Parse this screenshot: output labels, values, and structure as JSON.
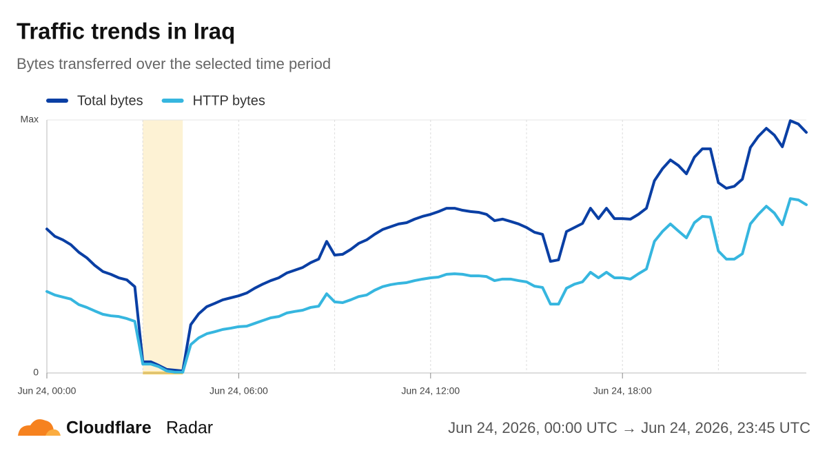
{
  "chart_data": {
    "type": "line",
    "title": "Traffic trends in Iraq",
    "subtitle": "Bytes transferred over the selected time period",
    "x": [
      0,
      0.25,
      0.5,
      0.75,
      1,
      1.25,
      1.5,
      1.75,
      2,
      2.25,
      2.5,
      2.75,
      3,
      3.25,
      3.5,
      3.75,
      4,
      4.25,
      4.5,
      4.75,
      5,
      5.25,
      5.5,
      5.75,
      6,
      6.25,
      6.5,
      6.75,
      7,
      7.25,
      7.5,
      7.75,
      8,
      8.25,
      8.5,
      8.75,
      9,
      9.25,
      9.5,
      9.75,
      10,
      10.25,
      10.5,
      10.75,
      11,
      11.25,
      11.5,
      11.75,
      12,
      12.25,
      12.5,
      12.75,
      13,
      13.25,
      13.5,
      13.75,
      14,
      14.25,
      14.5,
      14.75,
      15,
      15.25,
      15.5,
      15.75,
      16,
      16.25,
      16.5,
      16.75,
      17,
      17.25,
      17.5,
      17.75,
      18,
      18.25,
      18.5,
      18.75,
      19,
      19.25,
      19.5,
      19.75,
      20,
      20.25,
      20.5,
      20.75,
      21,
      21.25,
      21.5,
      21.75,
      22,
      22.25,
      22.5,
      22.75,
      23,
      23.25,
      23.5,
      23.75
    ],
    "series": [
      {
        "name": "Total bytes",
        "color": "#0a3fa4",
        "values": [
          56.9,
          54.0,
          52.6,
          50.7,
          47.7,
          45.5,
          42.5,
          40.1,
          39.0,
          37.6,
          36.8,
          34.1,
          4.4,
          4.4,
          3.0,
          1.4,
          1.1,
          0.8,
          19.1,
          23.4,
          26.2,
          27.5,
          28.9,
          29.7,
          30.5,
          31.6,
          33.5,
          35.1,
          36.5,
          37.6,
          39.5,
          40.6,
          41.7,
          43.6,
          45.0,
          52.0,
          46.6,
          46.9,
          48.8,
          51.2,
          52.6,
          54.8,
          56.7,
          57.8,
          58.9,
          59.4,
          60.8,
          61.9,
          62.7,
          63.8,
          65.1,
          65.1,
          64.3,
          63.8,
          63.5,
          62.7,
          60.2,
          60.8,
          59.9,
          58.9,
          57.5,
          55.6,
          54.8,
          44.1,
          44.7,
          55.9,
          57.5,
          59.1,
          65.1,
          61.0,
          65.1,
          61.0,
          61.0,
          60.8,
          62.7,
          65.1,
          76.0,
          80.7,
          84.2,
          82.0,
          78.7,
          85.3,
          88.6,
          88.6,
          75.2,
          73.0,
          73.8,
          76.6,
          89.1,
          93.5,
          96.7,
          94.0,
          89.4,
          99.7,
          98.4,
          95.1
        ]
      },
      {
        "name": "HTTP bytes",
        "color": "#36b6df",
        "values": [
          32.2,
          30.8,
          30.0,
          29.2,
          27.0,
          25.9,
          24.5,
          23.2,
          22.6,
          22.3,
          21.5,
          20.4,
          3.5,
          3.5,
          2.5,
          0.8,
          0.3,
          0.3,
          11.2,
          13.9,
          15.5,
          16.3,
          17.2,
          17.7,
          18.3,
          18.5,
          19.6,
          20.7,
          21.8,
          22.3,
          23.7,
          24.3,
          24.8,
          25.9,
          26.4,
          31.3,
          28.1,
          27.8,
          28.9,
          30.2,
          30.8,
          32.7,
          34.1,
          34.9,
          35.4,
          35.7,
          36.5,
          37.1,
          37.6,
          37.9,
          39.0,
          39.2,
          39.0,
          38.4,
          38.4,
          38.1,
          36.5,
          37.1,
          37.1,
          36.5,
          36.0,
          34.3,
          33.8,
          27.2,
          27.2,
          33.5,
          35.1,
          36.0,
          39.8,
          37.6,
          39.8,
          37.6,
          37.6,
          37.1,
          39.2,
          41.1,
          52.0,
          55.9,
          58.9,
          56.1,
          53.4,
          59.4,
          61.9,
          61.6,
          48.2,
          45.0,
          45.0,
          47.1,
          58.9,
          62.7,
          65.9,
          63.2,
          58.6,
          68.9,
          68.4,
          66.5
        ]
      }
    ],
    "xlim": [
      0,
      23.75
    ],
    "xticks": [
      {
        "value": 0,
        "label": "Jun 24, 00:00"
      },
      {
        "value": 6,
        "label": "Jun 24, 06:00"
      },
      {
        "value": 12,
        "label": "Jun 24, 12:00"
      },
      {
        "value": 18,
        "label": "Jun 24, 18:00"
      }
    ],
    "xgrid": [
      3,
      9,
      15,
      21
    ],
    "ylim": [
      0,
      100
    ],
    "yticks": [
      0,
      {
        "value": 100,
        "label": "Max"
      }
    ],
    "highlight": [
      3,
      4.25
    ],
    "highlight_color": "#fdf2d4",
    "legend": "top-left"
  },
  "footer": {
    "brand": "Cloudflare",
    "product": "Radar",
    "range": "Jun 24, 2026, 00:00 UTC → Jun 24, 2026, 23:45 UTC"
  }
}
